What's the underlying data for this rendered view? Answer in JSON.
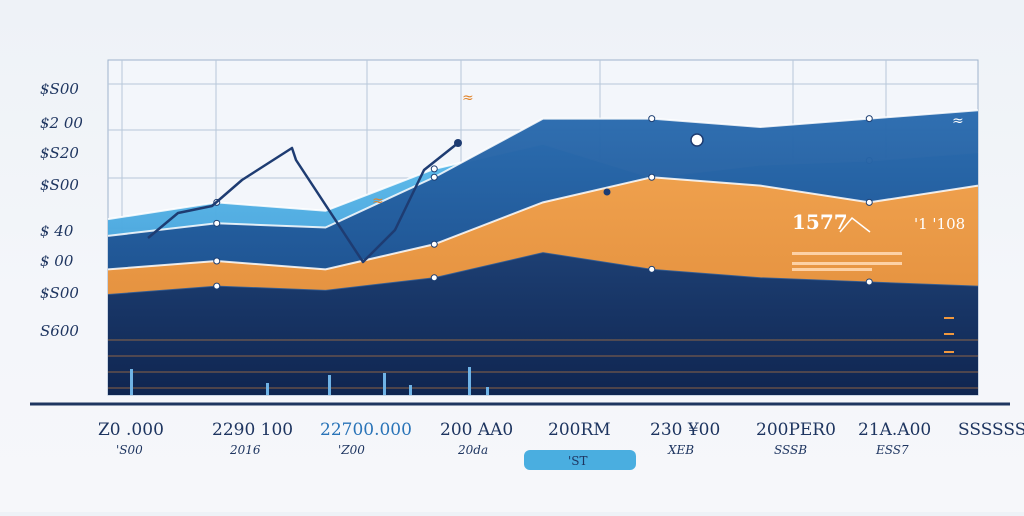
{
  "chart_data": {
    "type": "area",
    "title": "",
    "xlabel": "",
    "ylabel": "",
    "y_tick_labels": [
      "$S00",
      "$2 00",
      "$S20",
      "$S00",
      "$ 40",
      "$ 00",
      "$S00",
      "S600"
    ],
    "categories": [
      "Z0 .000",
      "2290 100",
      "22700.000",
      "200 AA0",
      "200RM",
      "230 ¥00",
      "200PER0",
      "21A.A00",
      "SSSSSS"
    ],
    "x_sublabels": [
      "'S00",
      "2016",
      "'Z00",
      "20da",
      "",
      "XEB",
      "SSSB",
      "ESS7",
      ""
    ],
    "highlight_label": "'ST",
    "annotations": {
      "big_number": "1577",
      "big_number_right": "'1 '108",
      "glyph_marks": [
        "≈",
        "≈",
        "≈"
      ]
    },
    "series": [
      {
        "name": "",
        "color": "#4aaee0",
        "values": [
          210,
          230,
          220,
          270,
          300,
          260,
          275,
          280,
          290
        ]
      },
      {
        "name": "",
        "color": "#1d5a9e",
        "values": [
          190,
          205,
          200,
          260,
          330,
          330,
          320,
          330,
          340
        ]
      },
      {
        "name": "",
        "color": "#f0983e",
        "values": [
          150,
          160,
          150,
          180,
          230,
          260,
          250,
          230,
          250
        ]
      },
      {
        "name": "",
        "color": "#16325e",
        "values": [
          120,
          130,
          125,
          140,
          170,
          150,
          140,
          135,
          130
        ]
      }
    ],
    "trend_line": {
      "name": "",
      "color": "#1e3c72",
      "values": [
        110,
        260,
        200,
        390
      ]
    },
    "ylim": [
      0,
      400
    ],
    "grid": true,
    "legend": "none"
  }
}
